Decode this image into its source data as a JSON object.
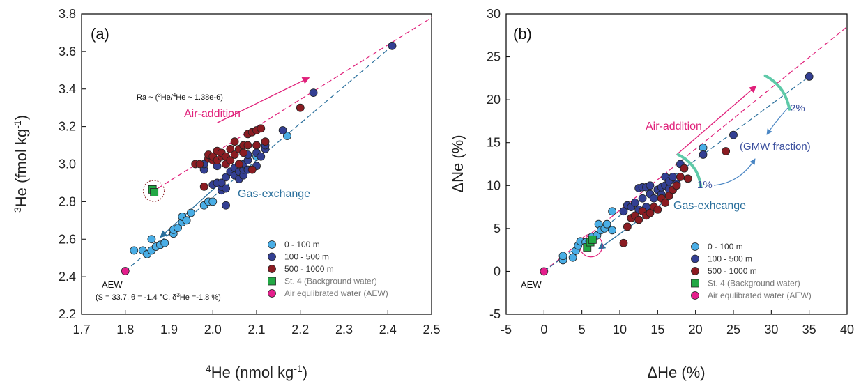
{
  "colors": {
    "cat_0_100": "#4aaee6",
    "cat_100_500": "#333f92",
    "cat_500_1000": "#8a1c22",
    "st4": "#22a845",
    "aew": "#e41e8c",
    "air_addition": "#e0207a",
    "gas_exchange": "#2a6f9c",
    "gmw_curve": "#5ec9a8"
  },
  "chart_data": [
    {
      "type": "scatter",
      "panel": "(a)",
      "xlabel": {
        "sup": "4",
        "main": "He (nmol kg",
        "sup2": "-1",
        "end": ")"
      },
      "ylabel": {
        "sup": "3",
        "main": "He (fmol kg",
        "sup2": "-1",
        "end": ")"
      },
      "xlim": [
        1.7,
        2.5
      ],
      "ylim": [
        2.2,
        3.8
      ],
      "xticks": [
        "1.7",
        "1.8",
        "1.9",
        "2.0",
        "2.1",
        "2.2",
        "2.3",
        "2.4",
        "2.5"
      ],
      "yticks": [
        "2.2",
        "2.4",
        "2.6",
        "2.8",
        "3.0",
        "3.2",
        "3.4",
        "3.6",
        "3.8"
      ],
      "series": [
        {
          "name": "0 - 100 m",
          "color": "#4aaee6",
          "marker": "circle",
          "points": [
            [
              1.82,
              2.54
            ],
            [
              1.84,
              2.54
            ],
            [
              1.85,
              2.52
            ],
            [
              1.86,
              2.54
            ],
            [
              1.86,
              2.6
            ],
            [
              1.87,
              2.56
            ],
            [
              1.88,
              2.57
            ],
            [
              1.89,
              2.58
            ],
            [
              1.91,
              2.63
            ],
            [
              1.91,
              2.65
            ],
            [
              1.92,
              2.66
            ],
            [
              1.93,
              2.69
            ],
            [
              1.93,
              2.72
            ],
            [
              1.94,
              2.7
            ],
            [
              1.95,
              2.74
            ],
            [
              1.98,
              2.78
            ],
            [
              1.99,
              2.8
            ],
            [
              2.0,
              2.8
            ],
            [
              2.1,
              3.04
            ],
            [
              2.17,
              3.15
            ]
          ]
        },
        {
          "name": "100 - 500 m",
          "color": "#333f92",
          "marker": "circle",
          "points": [
            [
              1.98,
              2.97
            ],
            [
              1.98,
              3.0
            ],
            [
              2.0,
              2.89
            ],
            [
              2.01,
              2.9
            ],
            [
              2.01,
              2.99
            ],
            [
              2.02,
              2.86
            ],
            [
              2.02,
              2.88
            ],
            [
              2.02,
              2.9
            ],
            [
              2.03,
              2.78
            ],
            [
              2.03,
              2.87
            ],
            [
              2.03,
              2.93
            ],
            [
              2.04,
              2.96
            ],
            [
              2.05,
              2.94
            ],
            [
              2.05,
              2.98
            ],
            [
              2.06,
              2.96
            ],
            [
              2.06,
              2.92
            ],
            [
              2.07,
              2.94
            ],
            [
              2.07,
              2.97
            ],
            [
              2.07,
              3.0
            ],
            [
              2.08,
              2.97
            ],
            [
              2.08,
              3.02
            ],
            [
              2.08,
              3.05
            ],
            [
              2.1,
              2.99
            ],
            [
              2.1,
              3.06
            ],
            [
              2.11,
              3.04
            ],
            [
              2.12,
              3.08
            ],
            [
              2.12,
              3.1
            ],
            [
              2.16,
              3.18
            ],
            [
              2.23,
              3.38
            ],
            [
              2.41,
              3.63
            ]
          ]
        },
        {
          "name": "500 - 1000 m",
          "color": "#8a1c22",
          "marker": "circle",
          "points": [
            [
              1.96,
              3.0
            ],
            [
              1.97,
              3.0
            ],
            [
              1.98,
              2.88
            ],
            [
              1.99,
              3.03
            ],
            [
              1.99,
              3.05
            ],
            [
              2.0,
              3.02
            ],
            [
              2.0,
              3.04
            ],
            [
              2.01,
              3.07
            ],
            [
              2.01,
              3.02
            ],
            [
              2.02,
              3.04
            ],
            [
              2.02,
              3.06
            ],
            [
              2.03,
              3.04
            ],
            [
              2.03,
              3.0
            ],
            [
              2.04,
              3.02
            ],
            [
              2.04,
              3.08
            ],
            [
              2.05,
              3.05
            ],
            [
              2.05,
              3.12
            ],
            [
              2.06,
              3.08
            ],
            [
              2.06,
              3.0
            ],
            [
              2.07,
              3.06
            ],
            [
              2.07,
              3.1
            ],
            [
              2.08,
              3.1
            ],
            [
              2.08,
              3.16
            ],
            [
              2.09,
              3.17
            ],
            [
              2.09,
              2.97
            ],
            [
              2.1,
              3.1
            ],
            [
              2.1,
              3.18
            ],
            [
              2.11,
              3.19
            ],
            [
              2.12,
              3.12
            ],
            [
              2.2,
              3.3
            ]
          ]
        },
        {
          "name": "St. 4 (Background water)",
          "color": "#22a845",
          "marker": "square",
          "points": [
            [
              1.862,
              2.865
            ],
            [
              1.866,
              2.85
            ]
          ]
        },
        {
          "name": "Air equlibrated water (AEW)",
          "color": "#e41e8c",
          "marker": "circle",
          "points": [
            [
              1.8,
              2.43
            ]
          ]
        }
      ],
      "lines": [
        {
          "name": "air-addition",
          "color": "#e0207a",
          "style": "dashed",
          "from": [
            1.86,
            2.85
          ],
          "to": [
            2.5,
            3.78
          ]
        },
        {
          "name": "gas-exchange",
          "color": "#2a6f9c",
          "style": "dashed",
          "from": [
            1.8,
            2.43
          ],
          "to": [
            2.41,
            3.63
          ]
        }
      ],
      "arrows": [
        {
          "name": "air-addition-arrow",
          "color": "#e0207a",
          "from": [
            2.01,
            3.22
          ],
          "to": [
            2.22,
            3.46
          ]
        },
        {
          "name": "gas-exchange-arrow",
          "color": "#2a6f9c",
          "from": [
            2.06,
            2.99
          ],
          "to": [
            1.88,
            2.61
          ]
        }
      ],
      "circle_highlight": {
        "center": [
          1.865,
          2.857
        ],
        "r_x": 0.024,
        "color": "#8a1c22"
      },
      "annotations": {
        "ra_prefix": "Ra ~ (",
        "ra_sup1": "3",
        "ra_mid": "He/",
        "ra_sup2": "4",
        "ra_end": "He ~ 1.38e-6)",
        "air_addition": "Air-addition",
        "gas_exchange": "Gas-exchange",
        "aew": "AEW",
        "cond_a": "(S = 33.7, θ = -1.4 °C, δ",
        "cond_sup": "3",
        "cond_b": "He =-1.8 %)"
      },
      "legend": {
        "position": "bottom-right",
        "labels": [
          "0 - 100 m",
          "100 - 500 m",
          "500 - 1000 m",
          "St. 4 (Background water)",
          "Air equlibrated water (AEW)"
        ]
      }
    },
    {
      "type": "scatter",
      "panel": "(b)",
      "xlabel": {
        "main": "ΔHe (%)"
      },
      "ylabel": {
        "main": "ΔNe (%)"
      },
      "xlim": [
        -5,
        40
      ],
      "ylim": [
        -5,
        30
      ],
      "xticks": [
        "-5",
        "0",
        "5",
        "10",
        "15",
        "20",
        "25",
        "30",
        "35",
        "40"
      ],
      "yticks": [
        "-5",
        "0",
        "5",
        "10",
        "15",
        "20",
        "25",
        "30"
      ],
      "series": [
        {
          "name": "0 - 100 m",
          "color": "#4aaee6",
          "marker": "circle",
          "points": [
            [
              2.5,
              1.3
            ],
            [
              2.5,
              1.8
            ],
            [
              3.8,
              1.6
            ],
            [
              4.2,
              2.4
            ],
            [
              4.5,
              3.0
            ],
            [
              4.8,
              3.5
            ],
            [
              5.5,
              3.4
            ],
            [
              6.0,
              3.5
            ],
            [
              6.3,
              4.0
            ],
            [
              7.0,
              4.2
            ],
            [
              7.2,
              5.5
            ],
            [
              7.5,
              4.8
            ],
            [
              8.0,
              5.0
            ],
            [
              8.3,
              5.5
            ],
            [
              9.0,
              4.8
            ],
            [
              9.0,
              7.0
            ],
            [
              21.0,
              14.4
            ]
          ]
        },
        {
          "name": "100 - 500 m",
          "color": "#333f92",
          "marker": "circle",
          "points": [
            [
              10.5,
              7.0
            ],
            [
              11.0,
              7.7
            ],
            [
              11.5,
              7.5
            ],
            [
              12.0,
              8.0
            ],
            [
              12.5,
              9.7
            ],
            [
              12.5,
              7.2
            ],
            [
              13.0,
              8.5
            ],
            [
              13.0,
              9.8
            ],
            [
              13.5,
              9.8
            ],
            [
              13.5,
              7.5
            ],
            [
              14.0,
              9.0
            ],
            [
              14.0,
              10.0
            ],
            [
              14.5,
              8.5
            ],
            [
              15.0,
              9.5
            ],
            [
              15.5,
              9.0
            ],
            [
              15.5,
              9.8
            ],
            [
              16.0,
              10.0
            ],
            [
              16.0,
              11.0
            ],
            [
              16.5,
              10.5
            ],
            [
              16.5,
              9.6
            ],
            [
              17.0,
              11.0
            ],
            [
              17.5,
              10.2
            ],
            [
              18.0,
              12.5
            ],
            [
              18.5,
              12.0
            ],
            [
              19.0,
              10.8
            ],
            [
              21.0,
              13.6
            ],
            [
              25.0,
              15.9
            ],
            [
              35.0,
              22.7
            ]
          ]
        },
        {
          "name": "500 - 1000 m",
          "color": "#8a1c22",
          "marker": "circle",
          "points": [
            [
              10.5,
              3.3
            ],
            [
              11.0,
              5.2
            ],
            [
              11.5,
              6.2
            ],
            [
              12.0,
              6.5
            ],
            [
              12.5,
              6.0
            ],
            [
              13.0,
              7.0
            ],
            [
              13.5,
              6.5
            ],
            [
              14.0,
              6.8
            ],
            [
              14.5,
              7.5
            ],
            [
              15.0,
              7.2
            ],
            [
              15.5,
              8.5
            ],
            [
              16.0,
              8.0
            ],
            [
              16.5,
              8.8
            ],
            [
              17.0,
              9.5
            ],
            [
              17.5,
              10.0
            ],
            [
              18.0,
              11.0
            ],
            [
              18.5,
              12.0
            ],
            [
              19.0,
              10.8
            ],
            [
              24.0,
              14.0
            ]
          ]
        },
        {
          "name": "St. 4 (Background water)",
          "color": "#22a845",
          "marker": "square",
          "points": [
            [
              5.7,
              2.8
            ],
            [
              6.1,
              3.4
            ],
            [
              6.4,
              3.7
            ]
          ]
        },
        {
          "name": "Air equlibrated water (AEW)",
          "color": "#e41e8c",
          "marker": "circle",
          "points": [
            [
              0.0,
              0.0
            ]
          ]
        }
      ],
      "lines": [
        {
          "name": "air-addition",
          "color": "#e0207a",
          "style": "dashed",
          "from": [
            0,
            0
          ],
          "to": [
            40,
            28.5
          ]
        },
        {
          "name": "gas-exchange",
          "color": "#2a6f9c",
          "style": "dashed",
          "from": [
            0,
            0
          ],
          "to": [
            35,
            22.7
          ]
        }
      ],
      "arrows": [
        {
          "name": "air-addition-arrow",
          "color": "#e0207a",
          "from": [
            17.5,
            13.6
          ],
          "to": [
            28,
            21.6
          ]
        },
        {
          "name": "gas-exchange-arrow",
          "color": "#2a6f9c",
          "from": [
            16.5,
            8.5
          ],
          "to": [
            7.2,
            2.6
          ]
        }
      ],
      "circle_highlight": {
        "center": [
          6.2,
          3.0
        ],
        "r_x": 1.5,
        "color": "#e0207a"
      },
      "annotations": {
        "air_addition": "Air-addition",
        "gas_exchange": "Gas-exhcange",
        "aew": "AEW",
        "pct2": "2%",
        "pct1": "1%",
        "gmw": "(GMW fraction)"
      },
      "legend": {
        "position": "bottom-right",
        "labels": [
          "0 - 100 m",
          "100 - 500 m",
          "500 - 1000 m",
          "St. 4 (Background water)",
          "Air equlibrated water (AEW)"
        ]
      }
    }
  ]
}
